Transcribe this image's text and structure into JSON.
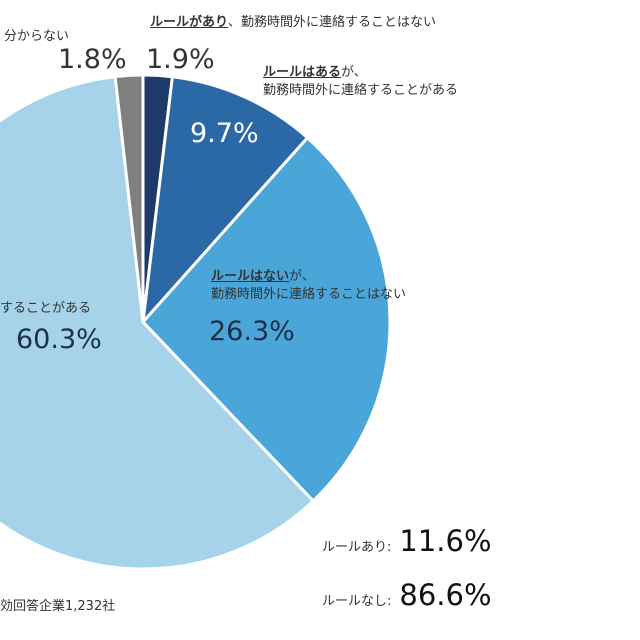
{
  "chart_data": {
    "type": "pie",
    "start": "top",
    "direction": "clockwise",
    "slices": [
      {
        "label_rule": "ルールがあり",
        "label_rest": "、勤務時間外に連絡することはない",
        "value": 1.9,
        "value_label": "1.9%",
        "color": "#1d3a6a"
      },
      {
        "label_rule": "ルールはある",
        "label_rest": "が、",
        "label_line2": "勤務時間外に連絡することがある",
        "value": 9.7,
        "value_label": "9.7%",
        "color": "#2b69a6"
      },
      {
        "label_rule": "ルールはない",
        "label_rest": "が、",
        "label_line2": "勤務時間外に連絡することはない",
        "value": 26.3,
        "value_label": "26.3%",
        "color": "#4aa6d9"
      },
      {
        "label_line2": "することがある",
        "value": 60.3,
        "value_label": "60.3%",
        "color": "#a6d3ea"
      },
      {
        "label_line2": "分からない",
        "value": 1.8,
        "value_label": "1.8%",
        "color": "#7f7f7f"
      }
    ],
    "summary": [
      {
        "label": "ルールあり:",
        "value": "11.6%"
      },
      {
        "label": "ルールなし:",
        "value": "86.6%"
      }
    ],
    "footnote": "効回答企業1,232社"
  }
}
